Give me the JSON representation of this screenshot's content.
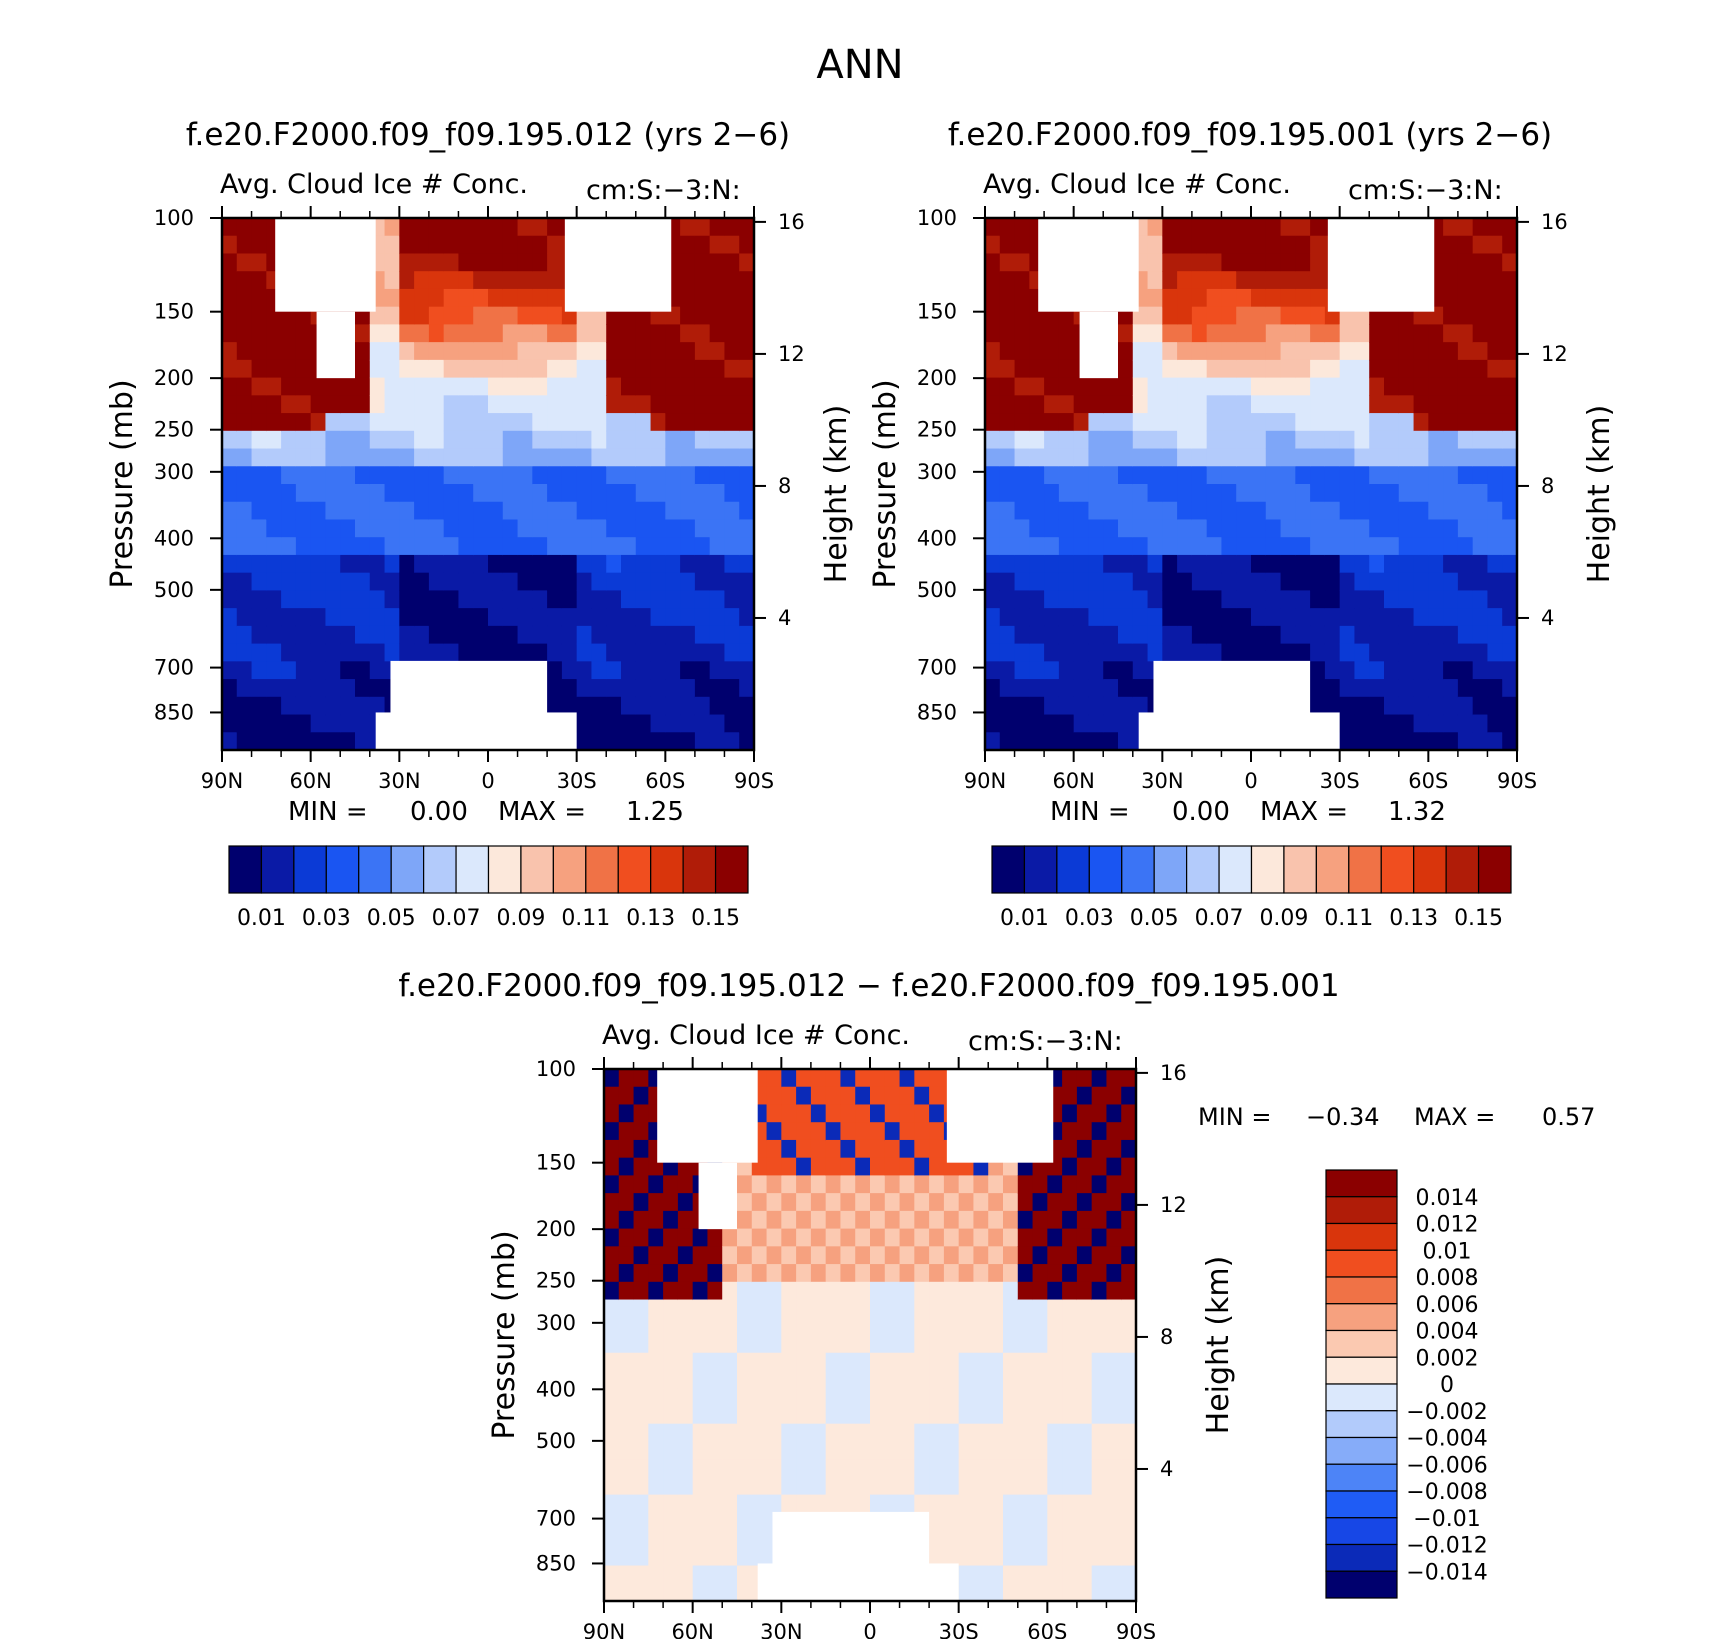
{
  "figure": {
    "title": "ANN"
  },
  "colors": {
    "seq": [
      "#00006e",
      "#0a1aa6",
      "#0b3ad6",
      "#1a55f2",
      "#3b74f5",
      "#7ea6f8",
      "#b3cbfb",
      "#dbe8fc",
      "#fce8db",
      "#f9c3ad",
      "#f6a17f",
      "#f07246",
      "#f04e1f",
      "#d9350c",
      "#b01c08",
      "#8b0000"
    ],
    "div": [
      "#00006e",
      "#0b2ab8",
      "#1747e6",
      "#1f5cf5",
      "#4d84f7",
      "#86acf9",
      "#b2cbfb",
      "#dbe8fc",
      "#fde9dc",
      "#fbc9b1",
      "#f6a17f",
      "#f07246",
      "#f04e1f",
      "#d9350c",
      "#b01c08",
      "#8b0000"
    ]
  },
  "chart_data": [
    {
      "type": "heatmap",
      "id": "top-left",
      "title": "f.e20.F2000.f09_f09.195.012 (yrs 2-6)",
      "subtitle_left": "Avg. Cloud Ice # Conc.",
      "subtitle_right": "cm:S:-3:N:",
      "xlabel": "",
      "ylabel": "Pressure (mb)",
      "y2label": "Height (km)",
      "x_ticks": [
        "90N",
        "60N",
        "30N",
        "0",
        "30S",
        "60S",
        "90S"
      ],
      "y_ticks": [
        100,
        150,
        200,
        250,
        300,
        400,
        500,
        700,
        850
      ],
      "y2_ticks": [
        16,
        12,
        8,
        4
      ],
      "min_label": "MIN =",
      "min_value": "0.00",
      "max_label": "MAX =",
      "max_value": "1.25",
      "colorbar_labels": [
        "0.01",
        "0.03",
        "0.05",
        "0.07",
        "0.09",
        "0.11",
        "0.13",
        "0.15"
      ]
    },
    {
      "type": "heatmap",
      "id": "top-right",
      "title": "f.e20.F2000.f09_f09.195.001 (yrs 2-6)",
      "subtitle_left": "Avg. Cloud Ice # Conc.",
      "subtitle_right": "cm:S:-3:N:",
      "xlabel": "",
      "ylabel": "Pressure (mb)",
      "y2label": "Height (km)",
      "x_ticks": [
        "90N",
        "60N",
        "30N",
        "0",
        "30S",
        "60S",
        "90S"
      ],
      "y_ticks": [
        100,
        150,
        200,
        250,
        300,
        400,
        500,
        700,
        850
      ],
      "y2_ticks": [
        16,
        12,
        8,
        4
      ],
      "min_label": "MIN =",
      "min_value": "0.00",
      "max_label": "MAX =",
      "max_value": "1.32",
      "colorbar_labels": [
        "0.01",
        "0.03",
        "0.05",
        "0.07",
        "0.09",
        "0.11",
        "0.13",
        "0.15"
      ]
    },
    {
      "type": "heatmap",
      "id": "difference",
      "title": "f.e20.F2000.f09_f09.195.012 - f.e20.F2000.f09_f09.195.001",
      "subtitle_left": "Avg. Cloud Ice # Conc.",
      "subtitle_right": "cm:S:-3:N:",
      "xlabel": "",
      "ylabel": "Pressure (mb)",
      "y2label": "Height (km)",
      "x_ticks": [
        "90N",
        "60N",
        "30N",
        "0",
        "30S",
        "60S",
        "90S"
      ],
      "y_ticks": [
        100,
        150,
        200,
        250,
        300,
        400,
        500,
        700,
        850
      ],
      "y2_ticks": [
        16,
        12,
        8,
        4
      ],
      "min_label": "MIN =",
      "min_value": "-0.34",
      "max_label": "MAX =",
      "max_value": "0.57",
      "colorbar_labels": [
        "0.014",
        "0.012",
        "0.01",
        "0.008",
        "0.006",
        "0.004",
        "0.002",
        "0",
        "-0.002",
        "-0.004",
        "-0.006",
        "-0.008",
        "-0.01",
        "-0.012",
        "-0.014"
      ]
    }
  ]
}
